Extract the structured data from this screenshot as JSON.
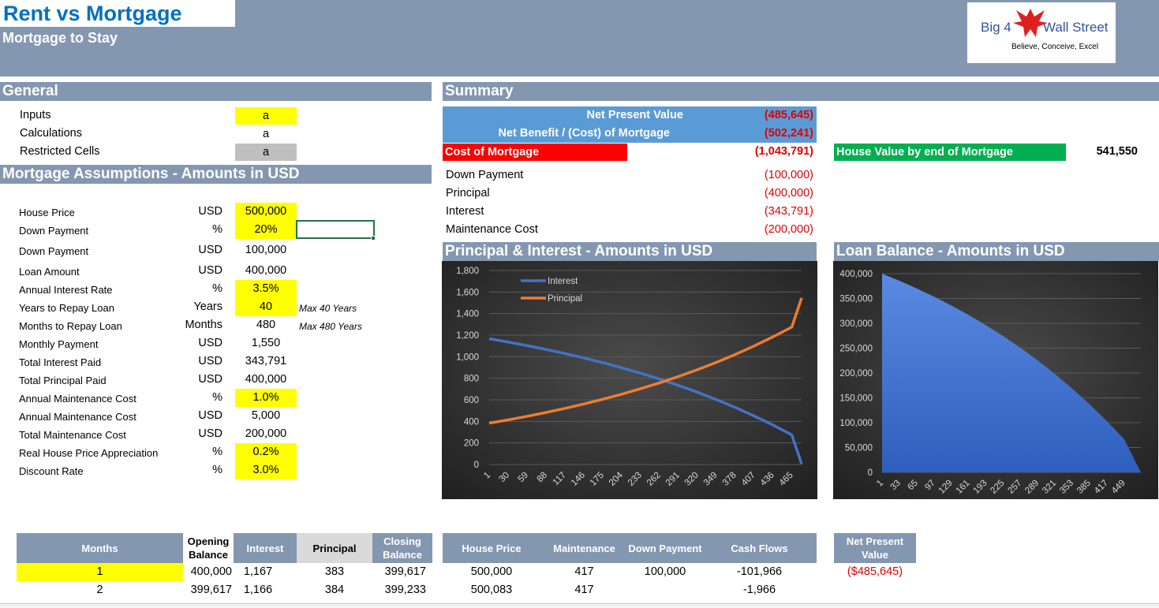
{
  "title": "Rent vs Mortgage",
  "subtitle": "Mortgage to Stay",
  "logo": {
    "left": "Big 4",
    "right": "Wall Street",
    "tagline": "Believe, Conceive, Excel"
  },
  "general": {
    "header": "General",
    "legend": [
      {
        "label": "Inputs",
        "value": "a",
        "color": "#ffff00"
      },
      {
        "label": "Calculations",
        "value": "a",
        "color": "#ffffff"
      },
      {
        "label": "Restricted Cells",
        "value": "a",
        "color": "#bfbfbf"
      }
    ]
  },
  "assumptions": {
    "header": "Mortgage Assumptions - Amounts in USD",
    "rows": [
      {
        "label": "House Price",
        "unit": "USD",
        "value": "500,000",
        "input": true,
        "note": ""
      },
      {
        "label": "Down Payment",
        "unit": "%",
        "value": "20%",
        "input": true,
        "note": ""
      },
      {
        "label": "Down Payment",
        "unit": "USD",
        "value": "100,000",
        "input": false,
        "note": ""
      },
      {
        "label": "Loan Amount",
        "unit": "USD",
        "value": "400,000",
        "input": false,
        "note": ""
      },
      {
        "label": "Annual Interest Rate",
        "unit": "%",
        "value": "3.5%",
        "input": true,
        "note": ""
      },
      {
        "label": "Years to Repay Loan",
        "unit": "Years",
        "value": "40",
        "input": true,
        "note": "Max 40 Years"
      },
      {
        "label": "Months to Repay Loan",
        "unit": "Months",
        "value": "480",
        "input": false,
        "note": "Max 480 Years"
      },
      {
        "label": "Monthly Payment",
        "unit": "USD",
        "value": "1,550",
        "input": false,
        "note": ""
      },
      {
        "label": "Total Interest Paid",
        "unit": "USD",
        "value": "343,791",
        "input": false,
        "note": ""
      },
      {
        "label": "Total Principal Paid",
        "unit": "USD",
        "value": "400,000",
        "input": false,
        "note": ""
      },
      {
        "label": "Annual Maintenance Cost",
        "unit": "%",
        "value": "1.0%",
        "input": true,
        "note": ""
      },
      {
        "label": "Annual Maintenance Cost",
        "unit": "USD",
        "value": "5,000",
        "input": false,
        "note": ""
      },
      {
        "label": "Total Maintenance Cost",
        "unit": "USD",
        "value": "200,000",
        "input": false,
        "note": ""
      },
      {
        "label": "Real House Price Appreciation",
        "unit": "%",
        "value": "0.2%",
        "input": true,
        "note": ""
      },
      {
        "label": "Discount Rate",
        "unit": "%",
        "value": "3.0%",
        "input": true,
        "note": ""
      }
    ]
  },
  "summary": {
    "header": "Summary",
    "npv_label": "Net Present Value",
    "npv_value": "(485,645)",
    "benefit_label": "Net Benefit / (Cost) of Mortgage",
    "benefit_value": "(502,241)",
    "cost_label": "Cost of Mortgage",
    "cost_value": "(1,043,791)",
    "house_value_label": "House Value by end of Mortgage",
    "house_value": "541,550",
    "items": [
      {
        "label": "Down Payment",
        "value": "(100,000)"
      },
      {
        "label": "Principal",
        "value": "(400,000)"
      },
      {
        "label": "Interest",
        "value": "(343,791)"
      },
      {
        "label": "Maintenance Cost",
        "value": "(200,000)"
      }
    ]
  },
  "chart_data": [
    {
      "type": "line",
      "title": "Principal & Interest - Amounts in USD",
      "xlabel": "",
      "ylabel": "",
      "ylim": [
        0,
        1800
      ],
      "yticks": [
        "0",
        "200",
        "400",
        "600",
        "800",
        "1,000",
        "1,200",
        "1,400",
        "1,600",
        "1,800"
      ],
      "xticks": [
        "1",
        "30",
        "59",
        "88",
        "117",
        "146",
        "175",
        "204",
        "233",
        "262",
        "291",
        "320",
        "349",
        "378",
        "407",
        "436",
        "465"
      ],
      "x": [
        1,
        30,
        59,
        88,
        117,
        146,
        175,
        204,
        233,
        262,
        291,
        320,
        349,
        378,
        407,
        436,
        465,
        480
      ],
      "series": [
        {
          "name": "Interest",
          "color": "#4472c4",
          "values": [
            1167,
            1136,
            1103,
            1068,
            1030,
            989,
            945,
            898,
            847,
            793,
            734,
            671,
            603,
            530,
            451,
            366,
            275,
            5
          ]
        },
        {
          "name": "Principal",
          "color": "#ed7d31",
          "values": [
            383,
            414,
            447,
            482,
            520,
            561,
            605,
            652,
            703,
            757,
            816,
            879,
            947,
            1020,
            1099,
            1184,
            1275,
            1545
          ]
        }
      ],
      "legend": "top-left",
      "grid": true
    },
    {
      "type": "area",
      "title": "Loan Balance - Amounts in USD",
      "xlabel": "",
      "ylabel": "",
      "ylim": [
        0,
        400000
      ],
      "yticks": [
        "0",
        "50,000",
        "100,000",
        "150,000",
        "200,000",
        "250,000",
        "300,000",
        "350,000",
        "400,000"
      ],
      "xticks": [
        "1",
        "33",
        "65",
        "97",
        "129",
        "161",
        "193",
        "225",
        "257",
        "289",
        "321",
        "353",
        "385",
        "417",
        "449"
      ],
      "x": [
        1,
        33,
        65,
        97,
        129,
        161,
        193,
        225,
        257,
        289,
        321,
        353,
        385,
        417,
        449,
        480
      ],
      "series": [
        {
          "name": "",
          "color": "#4472c4",
          "values": [
            400000,
            385800,
            370300,
            353800,
            336000,
            316900,
            296400,
            274400,
            250700,
            225300,
            198000,
            168700,
            137200,
            103400,
            67100,
            0
          ]
        }
      ],
      "grid": true
    }
  ],
  "schedule": {
    "headers": [
      "Months",
      "Opening Balance",
      "Interest",
      "Principal",
      "Closing Balance",
      "House Price",
      "Maintenance",
      "Down Payment",
      "Cash Flows"
    ],
    "rows": [
      [
        "1",
        "400,000",
        "1,167",
        "383",
        "399,617",
        "500,000",
        "417",
        "100,000",
        "-101,966"
      ],
      [
        "2",
        "399,617",
        "1,166",
        "384",
        "399,233",
        "500,083",
        "417",
        "",
        "-1,966"
      ]
    ],
    "npv_header": "Net Present Value",
    "npv_value": "($485,645)"
  }
}
